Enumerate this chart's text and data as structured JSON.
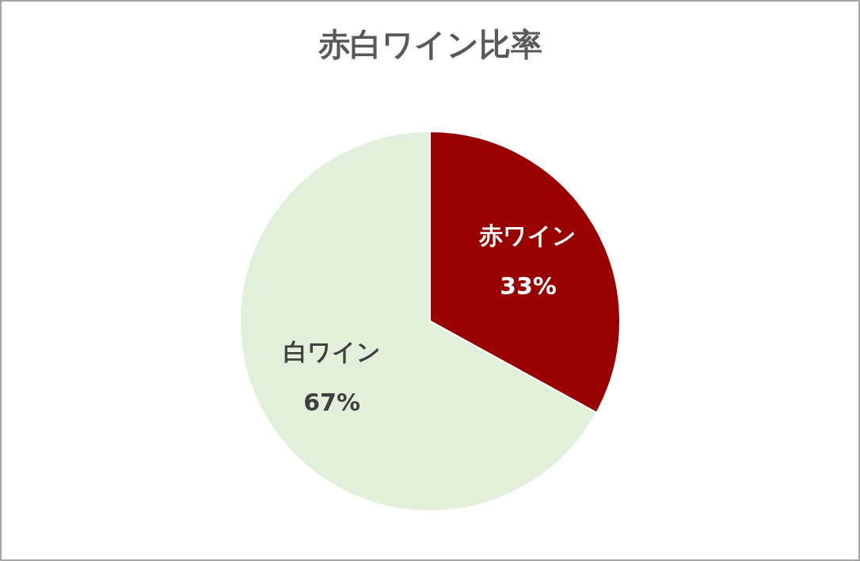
{
  "chart_data": {
    "type": "pie",
    "title": "赤白ワイン比率",
    "categories": [
      "赤ワイン",
      "白ワイン"
    ],
    "values": [
      33,
      67
    ],
    "colors": [
      "#990000",
      "#e2efda"
    ],
    "value_labels": [
      "33%",
      "67%"
    ],
    "legend": false
  }
}
